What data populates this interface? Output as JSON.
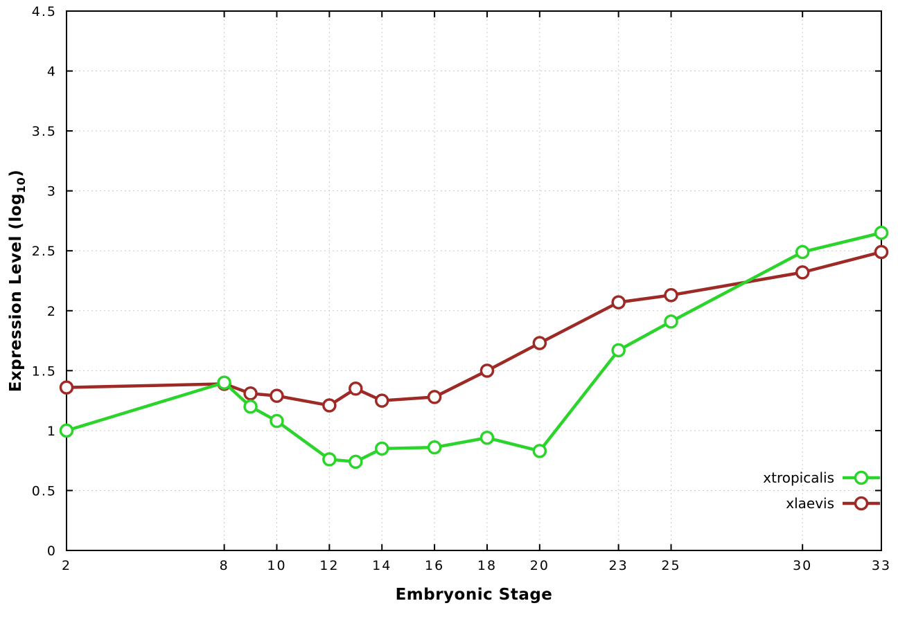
{
  "figure": {
    "background": "#ffffff",
    "border_color": "#000000",
    "grid_color": "#c9c9c9",
    "tick_color": "#000000"
  },
  "chart_data": {
    "type": "line",
    "title": "",
    "xlabel": "Embryonic Stage",
    "ylabel": "Expression Level (log10)",
    "ylabel_parts": {
      "main": "Expression Level (log",
      "sub": "10",
      "end": ")"
    },
    "xlim": [
      2,
      33
    ],
    "ylim": [
      0,
      4.5
    ],
    "xticks": [
      2,
      8,
      10,
      12,
      14,
      16,
      18,
      20,
      23,
      25,
      30,
      33
    ],
    "xtick_labels": [
      "2",
      "8",
      "10",
      "12",
      "14",
      "16",
      "18",
      "20",
      "23",
      "25",
      "30",
      "33"
    ],
    "yticks": [
      0,
      0.5,
      1,
      1.5,
      2,
      2.5,
      3,
      3.5,
      4,
      4.5
    ],
    "ytick_labels": [
      "0",
      "0.5",
      "1",
      "1.5",
      "2",
      "2.5",
      "3",
      "3.5",
      "4",
      "4.5"
    ],
    "grid": true,
    "legend_position": "bottom-right-inside",
    "x": [
      2,
      8,
      9,
      10,
      12,
      13,
      14,
      16,
      18,
      20,
      23,
      25,
      30,
      33
    ],
    "series": [
      {
        "name": "xtropicalis",
        "color": "#2bd42b",
        "marker": "open-circle",
        "marker_fill": "#ffffff",
        "values": [
          1.0,
          1.4,
          1.2,
          1.08,
          0.76,
          0.74,
          0.85,
          0.86,
          0.94,
          0.83,
          1.67,
          1.91,
          2.49,
          2.65
        ]
      },
      {
        "name": "xlaevis",
        "color": "#9e2a25",
        "marker": "open-circle",
        "marker_fill": "#ffffff",
        "values": [
          1.36,
          1.39,
          1.31,
          1.29,
          1.21,
          1.35,
          1.25,
          1.28,
          1.5,
          1.73,
          2.07,
          2.13,
          2.32,
          2.49
        ]
      }
    ]
  }
}
